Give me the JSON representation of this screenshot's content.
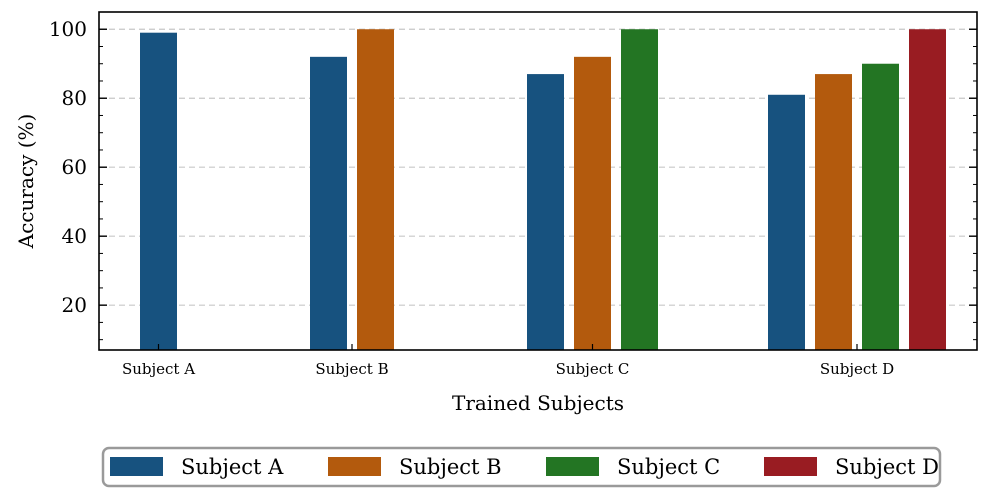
{
  "chart_data": {
    "type": "bar",
    "title": "",
    "xlabel": "Trained Subjects",
    "ylabel": "Accuracy (%)",
    "ylim": [
      7,
      105
    ],
    "yticks": [
      20,
      40,
      60,
      80,
      100
    ],
    "grid": true,
    "legend_position": "bottom-center",
    "categories": [
      "Subject A",
      "Subject B",
      "Subject C",
      "Subject D"
    ],
    "series": [
      {
        "name": "Subject A",
        "color": "#17527f",
        "values": [
          99,
          92,
          87,
          81
        ]
      },
      {
        "name": "Subject B",
        "color": "#b35a0d",
        "values": [
          null,
          100,
          92,
          87
        ]
      },
      {
        "name": "Subject C",
        "color": "#237523",
        "values": [
          null,
          null,
          100,
          90
        ]
      },
      {
        "name": "Subject D",
        "color": "#991c22",
        "values": [
          null,
          null,
          null,
          100
        ]
      }
    ]
  }
}
